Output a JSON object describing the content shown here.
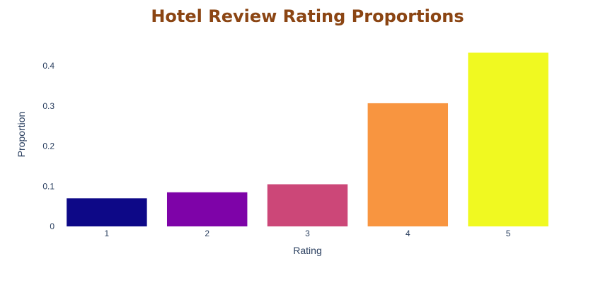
{
  "chart_data": {
    "type": "bar",
    "title": "Hotel Review Rating Proportions",
    "xlabel": "Rating",
    "ylabel": "Proportion",
    "categories": [
      "1",
      "2",
      "3",
      "4",
      "5"
    ],
    "values": [
      0.07,
      0.085,
      0.105,
      0.307,
      0.433
    ],
    "colors": [
      "#0d0887",
      "#7e03a8",
      "#cc4778",
      "#f89540",
      "#f0f921"
    ],
    "ylim": [
      0,
      0.455
    ],
    "yticks": [
      0,
      0.1,
      0.2,
      0.3,
      0.4
    ],
    "ytick_labels": [
      "0",
      "0.1",
      "0.2",
      "0.3",
      "0.4"
    ],
    "grid": false,
    "title_color": "#8b4513"
  }
}
